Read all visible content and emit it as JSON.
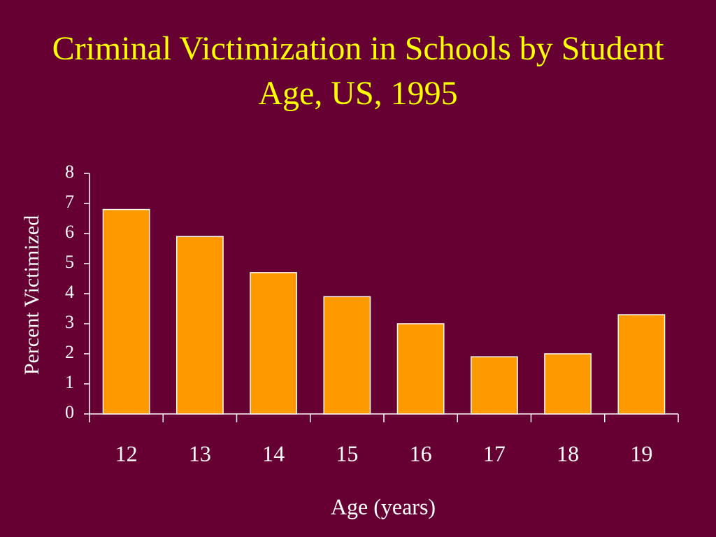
{
  "chart_data": {
    "type": "bar",
    "title": "Criminal Victimization in Schools by Student Age, US, 1995",
    "x_label": "Age (years)",
    "y_label": "Percent Victimized",
    "categories": [
      "12",
      "13",
      "14",
      "15",
      "16",
      "17",
      "18",
      "19"
    ],
    "values": [
      6.8,
      5.9,
      4.7,
      3.9,
      3.0,
      1.9,
      2.0,
      3.3
    ],
    "color": "#ff9900",
    "ylim": [
      0,
      8
    ],
    "yticks": [
      0,
      1,
      2,
      3,
      4,
      5,
      6,
      7,
      8
    ],
    "grid": false
  }
}
